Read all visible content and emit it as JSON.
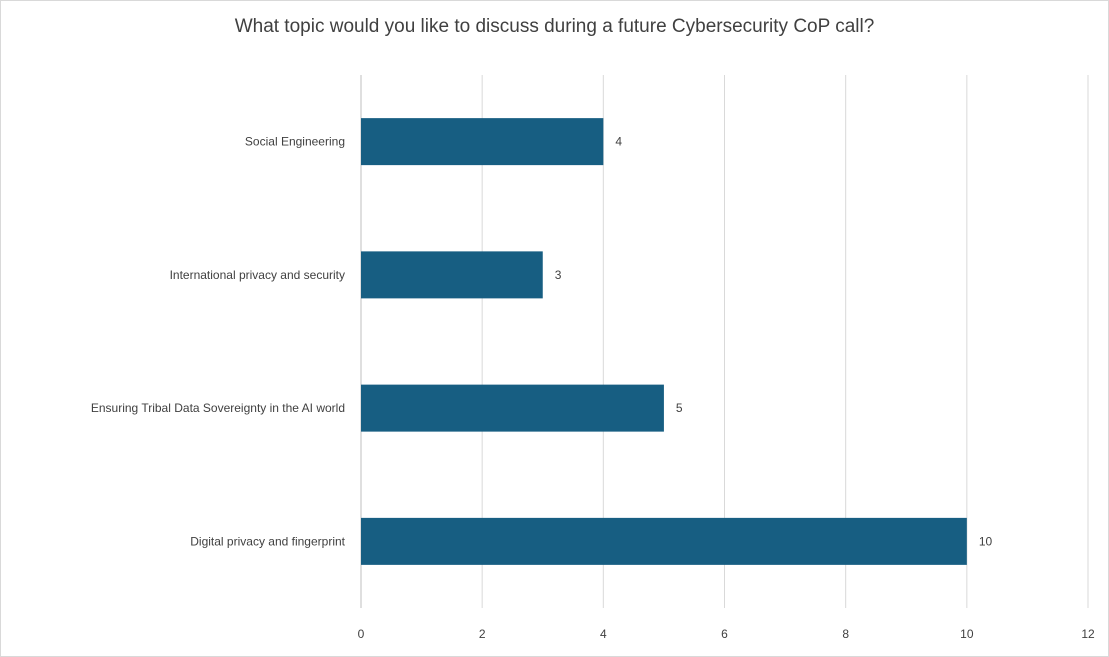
{
  "chart_data": {
    "type": "bar",
    "orientation": "horizontal",
    "title": "What topic would you like to discuss during a future Cybersecurity CoP call?",
    "categories": [
      "Social Engineering",
      "International privacy and security",
      "Ensuring Tribal Data Sovereignty in the AI world",
      "Digital privacy and fingerprint"
    ],
    "values": [
      4,
      3,
      5,
      10
    ],
    "xlim": [
      0,
      12
    ],
    "xticks": [
      "0",
      "2",
      "4",
      "6",
      "8",
      "10",
      "12"
    ],
    "data_labels": [
      "4",
      "3",
      "5",
      "10"
    ],
    "grid": "vertical gridlines on",
    "legend": "none",
    "bar_color": "#175E82",
    "grid_color": "#d9d9d9",
    "text_color": "#404040"
  }
}
